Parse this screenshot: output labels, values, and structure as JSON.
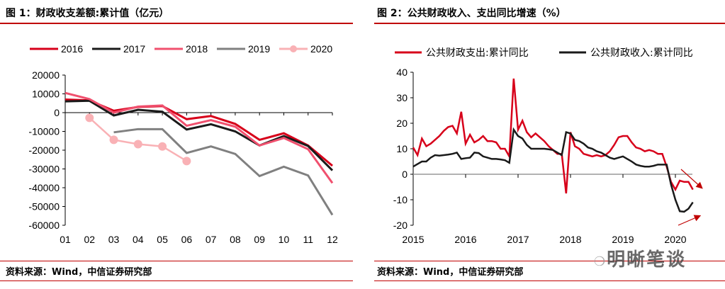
{
  "left": {
    "title": "图 1：财政收支差额:累计值（亿元）",
    "source": "资料来源：Wind，中信证券研究部"
  },
  "right": {
    "title": "图 2：公共财政收入、支出同比增速（%）",
    "source": "资料来源：Wind，中信证券研究部"
  },
  "watermark": "明晰笔谈",
  "chart_data": [
    {
      "type": "line",
      "title": "图 1：财政收支差额:累计值（亿元）",
      "ylim": [
        -60000,
        20000
      ],
      "yticks": [
        "20000",
        "10000",
        "0",
        "-10000",
        "-20000",
        "-30000",
        "-40000",
        "-50000",
        "-60000"
      ],
      "categories": [
        "01",
        "02",
        "03",
        "04",
        "05",
        "06",
        "07",
        "08",
        "09",
        "10",
        "11",
        "12"
      ],
      "legend": "top",
      "series": [
        {
          "name": "2016",
          "color": "#d7001a",
          "values": [
            7000,
            6500,
            1000,
            3000,
            3500,
            -3500,
            -1800,
            -6000,
            -14500,
            -11000,
            -17500,
            -28300
          ]
        },
        {
          "name": "2017",
          "color": "#1a1a1a",
          "values": [
            6000,
            6300,
            -1500,
            1500,
            500,
            -9000,
            -6200,
            -10000,
            -17500,
            -12500,
            -17800,
            -30800
          ]
        },
        {
          "name": "2018",
          "color": "#f0506e",
          "values": [
            10500,
            7200,
            0,
            3200,
            3800,
            -7000,
            -4000,
            -7500,
            -17500,
            -13500,
            -19500,
            -37500
          ]
        },
        {
          "name": "2019",
          "color": "#808080",
          "values": [
            null,
            null,
            -10500,
            -8800,
            -8800,
            -21500,
            -18000,
            -22000,
            -33800,
            -28800,
            -33500,
            -54500
          ]
        },
        {
          "name": "2020",
          "color": "#f9b1b5",
          "markers": true,
          "values": [
            null,
            -2800,
            -14500,
            -16800,
            -18000,
            -25800,
            null,
            null,
            null,
            null,
            null,
            null
          ]
        }
      ]
    },
    {
      "type": "line",
      "title": "图 2：公共财政收入、支出同比增速（%）",
      "ylim": [
        -20,
        40
      ],
      "yticks": [
        "40",
        "30",
        "20",
        "10",
        "0",
        "-10",
        "-20"
      ],
      "xticks": [
        "2015",
        "2016",
        "2017",
        "2018",
        "2019",
        "2020"
      ],
      "legend": "top",
      "x": [
        "2015-01",
        "2015-02",
        "2015-03",
        "2015-04",
        "2015-05",
        "2015-06",
        "2015-07",
        "2015-08",
        "2015-09",
        "2015-10",
        "2015-11",
        "2015-12",
        "2016-01",
        "2016-02",
        "2016-03",
        "2016-04",
        "2016-05",
        "2016-06",
        "2016-07",
        "2016-08",
        "2016-09",
        "2016-10",
        "2016-11",
        "2016-12",
        "2017-01",
        "2017-02",
        "2017-03",
        "2017-04",
        "2017-05",
        "2017-06",
        "2017-07",
        "2017-08",
        "2017-09",
        "2017-10",
        "2017-11",
        "2017-12",
        "2018-01",
        "2018-02",
        "2018-03",
        "2018-04",
        "2018-05",
        "2018-06",
        "2018-07",
        "2018-08",
        "2018-09",
        "2018-10",
        "2018-11",
        "2018-12",
        "2019-01",
        "2019-02",
        "2019-03",
        "2019-04",
        "2019-05",
        "2019-06",
        "2019-07",
        "2019-08",
        "2019-09",
        "2019-10",
        "2019-11",
        "2019-12",
        "2020-01",
        "2020-02",
        "2020-03",
        "2020-04",
        "2020-05"
      ],
      "series": [
        {
          "name": "公共财政支出:累计同比",
          "color": "#d7001a",
          "values": [
            10.5,
            7.5,
            14,
            11,
            12,
            13.5,
            15,
            17,
            18.5,
            19,
            16,
            24.5,
            12,
            15.5,
            12.5,
            13.5,
            15,
            13,
            13,
            12.5,
            10,
            10,
            7,
            37.5,
            17.5,
            21,
            16.5,
            14.5,
            16,
            14.5,
            13,
            11,
            9.5,
            8,
            8,
            -7.5,
            16.5,
            11,
            10,
            8,
            7.5,
            7,
            7.5,
            7,
            7.5,
            9,
            11.5,
            14.5,
            15,
            15,
            12.5,
            10.5,
            10,
            9,
            9.5,
            9,
            8,
            8,
            3,
            -3,
            -6,
            -2.5,
            -3,
            -3,
            -6
          ]
        },
        {
          "name": "公共财政收入:累计同比",
          "color": "#1a1a1a",
          "values": [
            3,
            4,
            5,
            5,
            6.5,
            7.5,
            7.3,
            7.5,
            7.7,
            8,
            8.5,
            6,
            6.3,
            6.5,
            8.5,
            8.3,
            7,
            6.5,
            6,
            6,
            5.8,
            5.5,
            4.5,
            17.5,
            15,
            14,
            11.5,
            10,
            10,
            10,
            10,
            9.8,
            9.5,
            8.5,
            7.5,
            16.5,
            16,
            13.5,
            13,
            12,
            10.5,
            10,
            9,
            8.5,
            7.5,
            6.5,
            6,
            6.5,
            7,
            6,
            5,
            3.8,
            3.3,
            3,
            3,
            3.3,
            3.8,
            3.8,
            3.8,
            -4,
            -10,
            -14.5,
            -14.7,
            -13.5,
            -11
          ]
        }
      ],
      "annotations": [
        "down-arrow",
        "up-arrow"
      ]
    }
  ]
}
